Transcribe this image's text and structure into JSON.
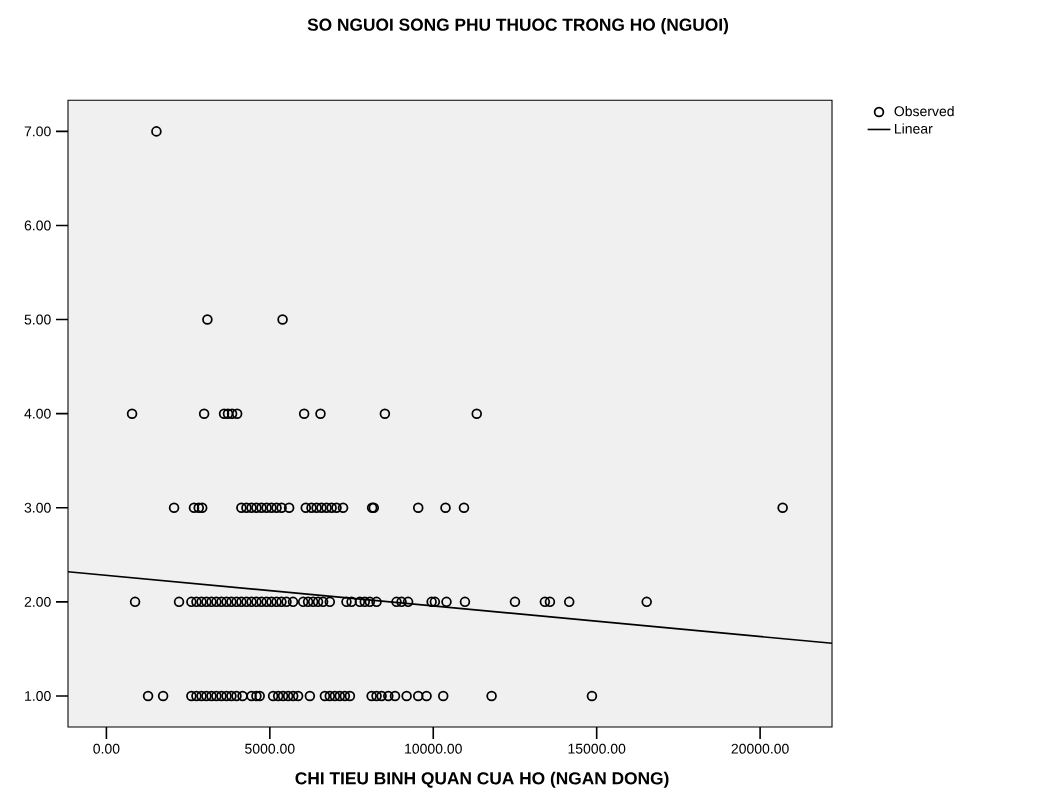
{
  "chart_data": {
    "type": "scatter",
    "title": "SO NGUOI SONG PHU THUOC TRONG HO (NGUOI)",
    "xlabel": "CHI TIEU BINH QUAN CUA HO (NGAN DONG)",
    "xlim": [
      -1175,
      22200
    ],
    "ylim": [
      0.67,
      7.33
    ],
    "xticks": [
      {
        "value": 0,
        "label": "0.00"
      },
      {
        "value": 5000,
        "label": "5000.00"
      },
      {
        "value": 10000,
        "label": "10000.00"
      },
      {
        "value": 15000,
        "label": "15000.00"
      },
      {
        "value": 20000,
        "label": "20000.00"
      }
    ],
    "yticks": [
      {
        "value": 1,
        "label": "1.00"
      },
      {
        "value": 2,
        "label": "2.00"
      },
      {
        "value": 3,
        "label": "3.00"
      },
      {
        "value": 4,
        "label": "4.00"
      },
      {
        "value": 5,
        "label": "5.00"
      },
      {
        "value": 6,
        "label": "6.00"
      },
      {
        "value": 7,
        "label": "7.00"
      }
    ],
    "legend": "top right",
    "marker": "circle",
    "series": [
      {
        "name": "Observed",
        "color": "#000000",
        "x": [
          1530,
          3090,
          5390,
          785,
          2990,
          3600,
          3720,
          3845,
          4000,
          6050,
          6550,
          8520,
          11330,
          2070,
          2680,
          2825,
          2930,
          4130,
          4285,
          4440,
          4590,
          4745,
          4900,
          5050,
          5205,
          5360,
          5590,
          6100,
          6275,
          6430,
          6580,
          6735,
          6890,
          7040,
          7240,
          8130,
          8180,
          9540,
          10375,
          10940,
          20690,
          877,
          2222,
          2600,
          2755,
          2910,
          3060,
          3215,
          3365,
          3520,
          3675,
          3825,
          3980,
          4130,
          4285,
          4440,
          4590,
          4745,
          4900,
          5050,
          5205,
          5355,
          5510,
          5710,
          6020,
          6170,
          6325,
          6475,
          6630,
          6835,
          7345,
          7500,
          7755,
          7905,
          8060,
          8265,
          8875,
          9030,
          9230,
          9950,
          10050,
          10405,
          10970,
          12500,
          13415,
          13570,
          14160,
          16530,
          1275,
          1735,
          2600,
          2755,
          2910,
          3060,
          3215,
          3365,
          3520,
          3675,
          3825,
          3980,
          4165,
          4440,
          4590,
          4690,
          5100,
          5255,
          5405,
          5560,
          5715,
          5865,
          6225,
          6685,
          6835,
          6990,
          7140,
          7295,
          7450,
          8115,
          8265,
          8420,
          8625,
          8830,
          9185,
          9540,
          9795,
          10305,
          11785,
          14855
        ],
        "values": [
          7,
          5,
          5,
          4,
          4,
          4,
          4,
          4,
          4,
          4,
          4,
          4,
          4,
          3,
          3,
          3,
          3,
          3,
          3,
          3,
          3,
          3,
          3,
          3,
          3,
          3,
          3,
          3,
          3,
          3,
          3,
          3,
          3,
          3,
          3,
          3,
          3,
          3,
          3,
          3,
          3,
          2,
          2,
          2,
          2,
          2,
          2,
          2,
          2,
          2,
          2,
          2,
          2,
          2,
          2,
          2,
          2,
          2,
          2,
          2,
          2,
          2,
          2,
          2,
          2,
          2,
          2,
          2,
          2,
          2,
          2,
          2,
          2,
          2,
          2,
          2,
          2,
          2,
          2,
          2,
          2,
          2,
          2,
          2,
          2,
          2,
          2,
          2,
          1,
          1,
          1,
          1,
          1,
          1,
          1,
          1,
          1,
          1,
          1,
          1,
          1,
          1,
          1,
          1,
          1,
          1,
          1,
          1,
          1,
          1,
          1,
          1,
          1,
          1,
          1,
          1,
          1,
          1,
          1,
          1,
          1,
          1,
          1,
          1,
          1,
          1,
          1,
          1
        ]
      },
      {
        "name": "Linear",
        "type": "line",
        "color": "#000000",
        "marker": "none",
        "x": [
          -1175,
          22200
        ],
        "values": [
          2.32,
          1.56
        ]
      }
    ]
  }
}
